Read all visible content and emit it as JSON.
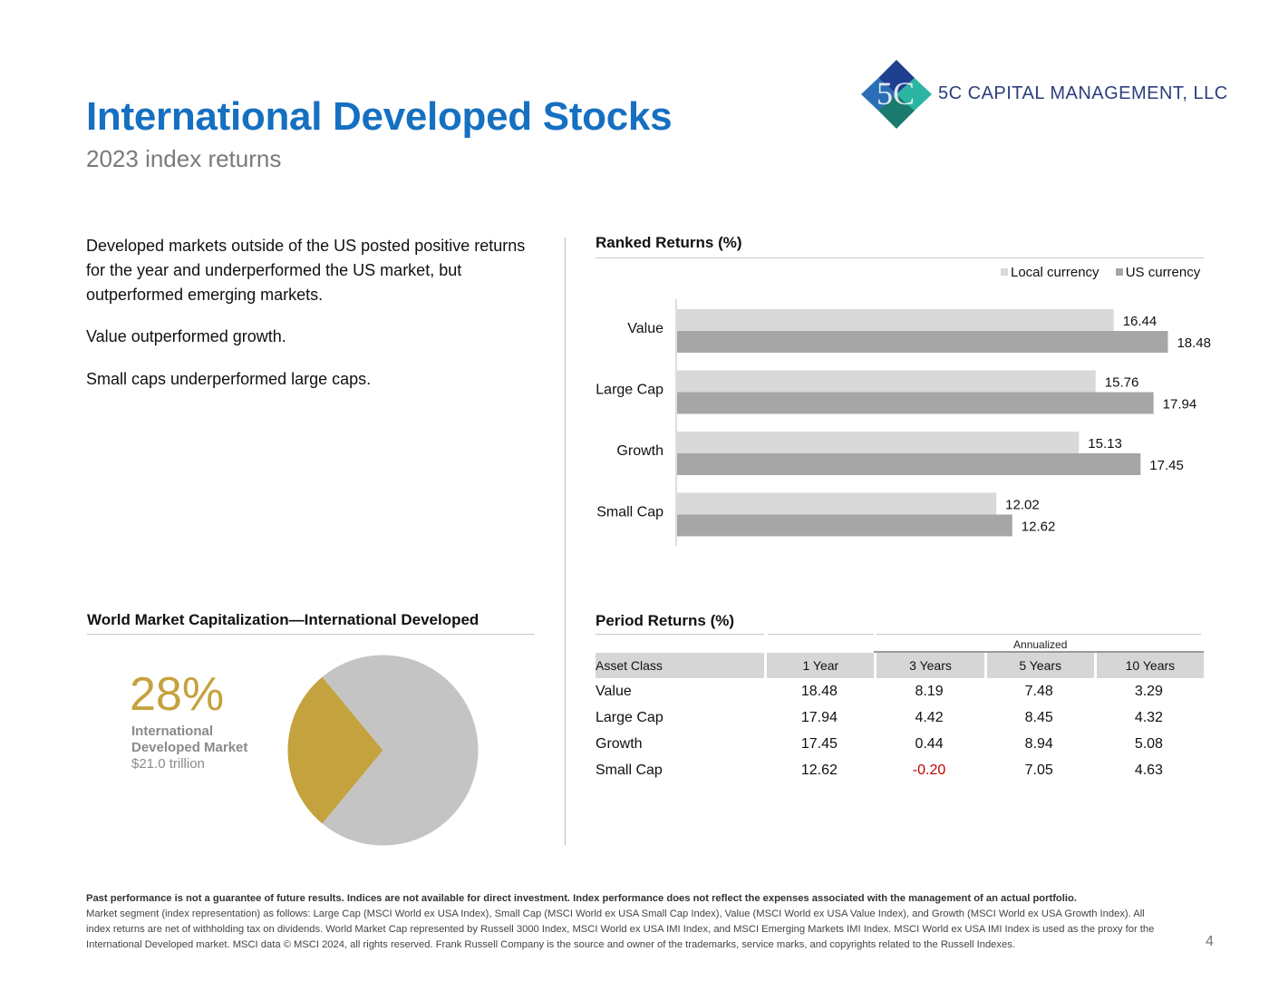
{
  "header": {
    "title": "International Developed Stocks",
    "subtitle": "2023 index returns",
    "company": "5C CAPITAL MANAGEMENT, LLC",
    "logo_text": "5C"
  },
  "summary": {
    "paragraphs": [
      "Developed markets outside of the US posted positive returns for the year and underperformed the US market, but outperformed emerging markets.",
      "Value outperformed growth.",
      "Small caps underperformed large caps."
    ]
  },
  "ranked_returns": {
    "title": "Ranked Returns (%)",
    "legend": [
      "Local currency",
      "US currency"
    ]
  },
  "chart_data": [
    {
      "type": "bar",
      "orientation": "horizontal",
      "title": "Ranked Returns (%)",
      "categories": [
        "Value",
        "Large Cap",
        "Growth",
        "Small Cap"
      ],
      "series": [
        {
          "name": "Local currency",
          "values": [
            16.44,
            15.76,
            15.13,
            12.02
          ],
          "color": "#d9d9d9"
        },
        {
          "name": "US currency",
          "values": [
            18.48,
            17.94,
            17.45,
            12.62
          ],
          "color": "#a6a6a6"
        }
      ],
      "xlim": [
        0,
        20
      ],
      "legend_position": "top-right",
      "grid": false
    },
    {
      "type": "pie",
      "title": "World Market Capitalization—International Developed",
      "slices": [
        {
          "label": "International Developed Market",
          "value": 28,
          "color": "#c4a23d"
        },
        {
          "label": "",
          "value": 72,
          "color": "#c4c4c4"
        }
      ]
    }
  ],
  "world_market": {
    "title": "World Market Capitalization—International Developed",
    "percent": "28%",
    "label": "International Developed Market",
    "value": "$21.0 trillion"
  },
  "period_returns": {
    "title": "Period Returns (%)",
    "annualized_label": "Annualized",
    "columns": [
      "Asset Class",
      "1 Year",
      "3 Years",
      "5 Years",
      "10 Years"
    ],
    "rows": [
      [
        "Value",
        "18.48",
        "8.19",
        "7.48",
        "3.29"
      ],
      [
        "Large Cap",
        "17.94",
        "4.42",
        "8.45",
        "4.32"
      ],
      [
        "Growth",
        "17.45",
        "0.44",
        "8.94",
        "5.08"
      ],
      [
        "Small Cap",
        "12.62",
        "-0.20",
        "7.05",
        "4.63"
      ]
    ]
  },
  "footer": {
    "bold": "Past performance is not a guarantee of future results. Indices are not available for direct investment. Index performance does not reflect the expenses associated with the management of an actual portfolio.",
    "text": "Market segment (index representation) as follows: Large Cap (MSCI World ex USA Index), Small Cap (MSCI World ex USA Small Cap Index), Value (MSCI World ex USA Value Index), and Growth (MSCI World ex USA Growth Index). All index returns are net of withholding tax on dividends. World Market Cap represented by Russell 3000 Index, MSCI World ex USA IMI Index, and MSCI Emerging Markets IMI Index. MSCI World ex USA IMI Index is used as the proxy for the International Developed market. MSCI data © MSCI 2024, all rights reserved. Frank Russell Company is the source and owner of the trademarks, service marks, and copyrights related to the Russell Indexes.",
    "page_number": "4"
  }
}
